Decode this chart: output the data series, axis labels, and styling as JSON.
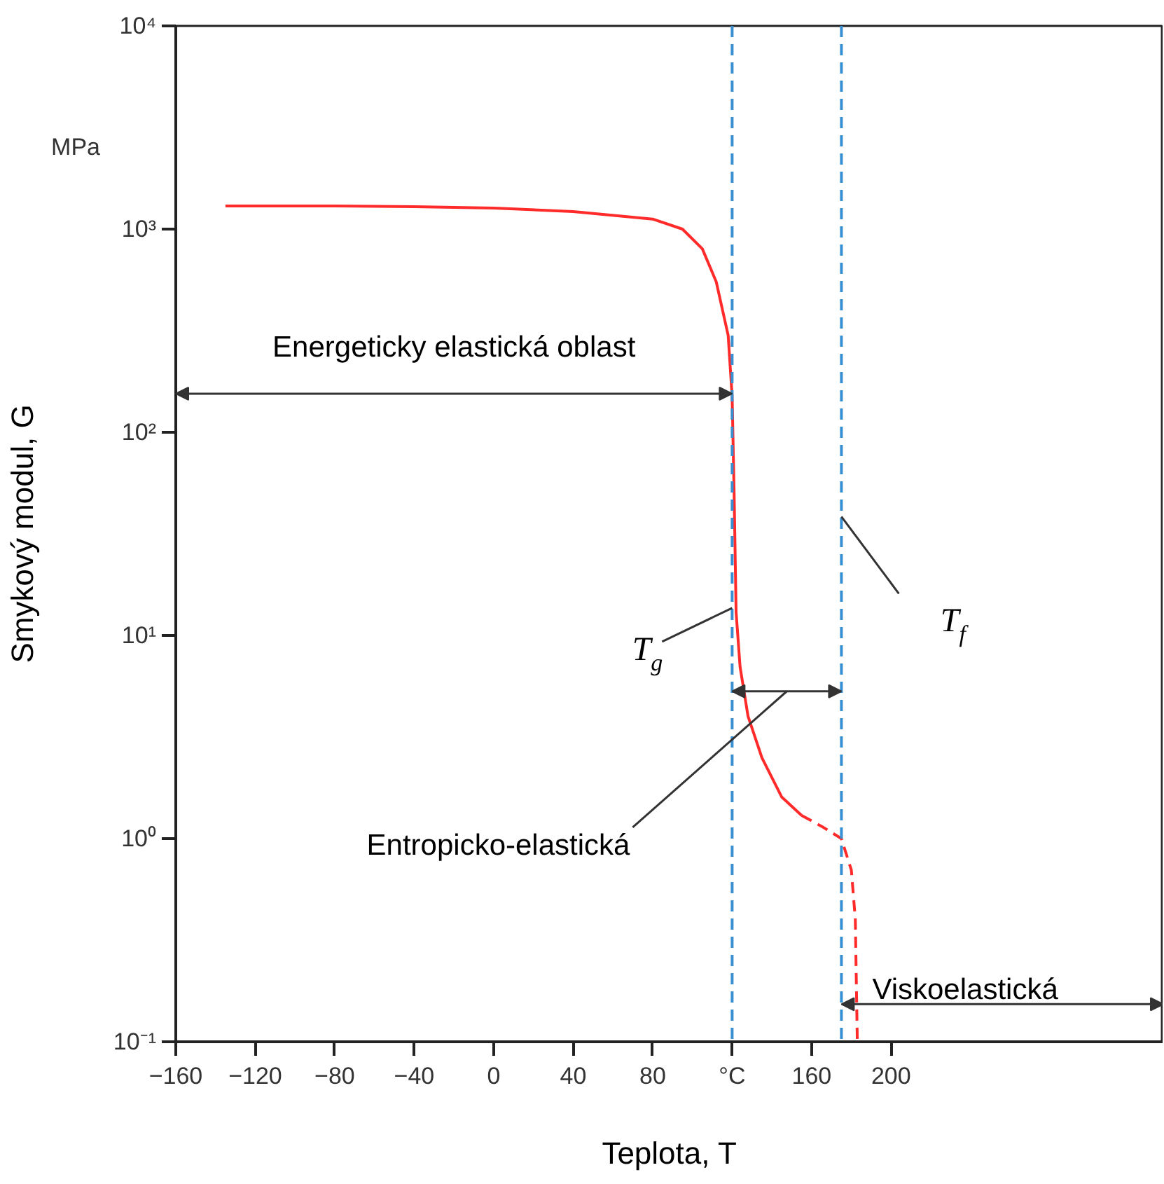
{
  "chart_data": {
    "type": "line",
    "xlabel": "Teplota, T",
    "ylabel": "Smykový modul, G",
    "log": "y",
    "xlim": [
      -160,
      337
    ],
    "ylim": [
      0.1,
      10000
    ],
    "xticks": [
      -160,
      -120,
      -80,
      -40,
      0,
      40,
      80,
      {
        "value": 120,
        "label": "°C"
      },
      160,
      200
    ],
    "yticks": [
      {
        "value": 0.1,
        "label": "10⁻¹"
      },
      {
        "value": 1,
        "label": "10⁰"
      },
      {
        "value": 10,
        "label": "10¹"
      },
      {
        "value": 100,
        "label": "10²"
      },
      {
        "value": 1000,
        "label": "10³"
      },
      {
        "value": 10000,
        "label": "10⁴"
      }
    ],
    "grid": false,
    "marker": "none",
    "series": [
      {
        "color": "#ff2a2a",
        "line_style": "solid",
        "x": [
          -135,
          -80,
          -40,
          0,
          40,
          80,
          95,
          105,
          112,
          118,
          120,
          121,
          122,
          124,
          128,
          135,
          145,
          155
        ],
        "values": [
          1300,
          1300,
          1290,
          1270,
          1220,
          1120,
          1000,
          800,
          550,
          300,
          150,
          50,
          13,
          7,
          4,
          2.5,
          1.6,
          1.3
        ]
      },
      {
        "color": "#ff2a2a",
        "line_style": "dashed",
        "x": [
          155,
          165,
          175,
          180,
          182,
          183
        ],
        "values": [
          1.3,
          1.15,
          1.0,
          0.7,
          0.4,
          0.1
        ]
      }
    ],
    "ref_lines": [
      {
        "axis": "x",
        "value": 120,
        "color": "#3a8fd0",
        "line_style": "dashed",
        "label": "T$_{g}$"
      },
      {
        "axis": "x",
        "value": 175,
        "color": "#3a8fd0",
        "line_style": "dashed",
        "label": "T$_{f}$"
      }
    ],
    "annotations": [
      "MPa",
      "Energeticky elastická oblast",
      "Entropicko-elastická",
      "Viskoelastická"
    ]
  }
}
